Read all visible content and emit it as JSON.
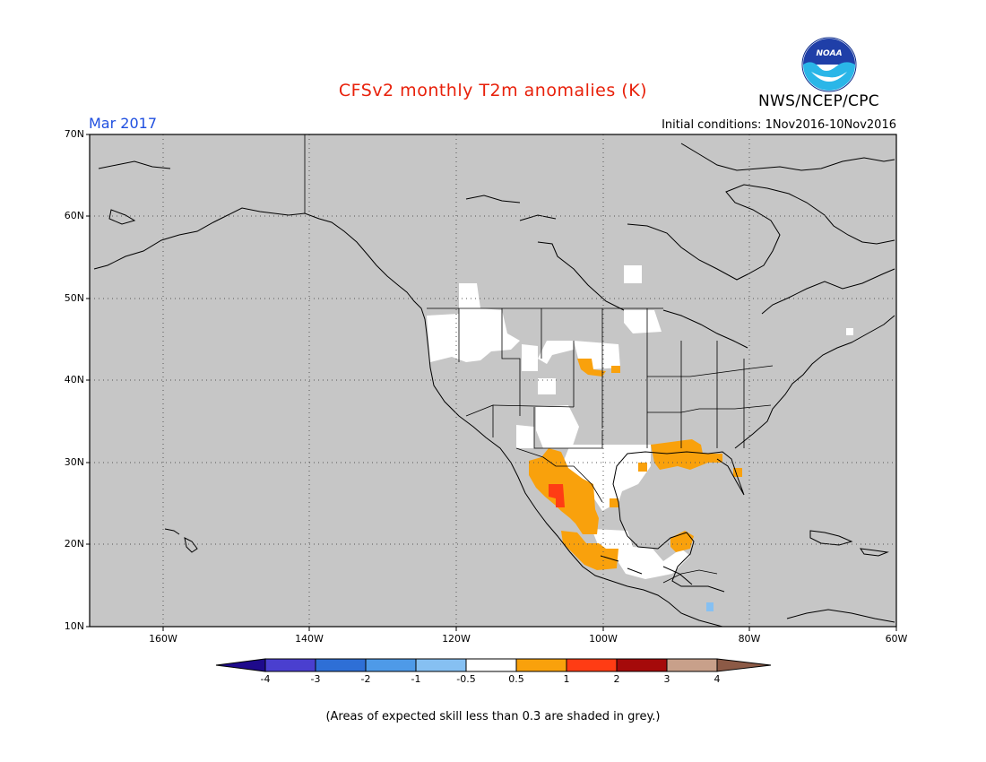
{
  "title": "CFSv2 monthly T2m anomalies (K)",
  "organization": "NWS/NCEP/CPC",
  "logo_text": "NOAA",
  "valid_month": "Mar 2017",
  "initial_conditions": "Initial conditions: 1Nov2016-10Nov2016",
  "footnote": "(Areas of expected skill less than 0.3 are shaded in grey.)",
  "colors": {
    "title": "#e8200a",
    "month": "#1f4fe0",
    "map_background": "#c6c6c6",
    "land_outline": "#000000",
    "grid": "#555555"
  },
  "axes": {
    "lat_labels": [
      "70N",
      "60N",
      "50N",
      "40N",
      "30N",
      "20N",
      "10N"
    ],
    "lon_labels": [
      "160W",
      "140W",
      "120W",
      "100W",
      "80W",
      "60W"
    ]
  },
  "colorbar": {
    "ticks": [
      "-4",
      "-3",
      "-2",
      "-1",
      "-0.5",
      "0.5",
      "1",
      "2",
      "3",
      "4"
    ],
    "colors": [
      "#1e0a8c",
      "#4a3fcf",
      "#2e6fd6",
      "#4e9ae8",
      "#86c0f2",
      "#ffffff",
      "#f9a10c",
      "#ff3c14",
      "#a50a0a",
      "#c8a08a",
      "#8c5a46"
    ]
  },
  "anomaly_regions": [
    {
      "name": "Pacific Northwest",
      "category": "near-normal (-0.5 to 0.5)",
      "color": "#ffffff"
    },
    {
      "name": "Northern Rockies",
      "category": "near-normal (-0.5 to 0.5)",
      "color": "#ffffff"
    },
    {
      "name": "Southwest US / New Mexico",
      "category": "near-normal (-0.5 to 0.5)",
      "color": "#ffffff"
    },
    {
      "name": "Texas",
      "category": "near-normal (-0.5 to 0.5)",
      "color": "#ffffff"
    },
    {
      "name": "Northwest Mexico",
      "category": "0.5 to 1",
      "color": "#f9a10c"
    },
    {
      "name": "Central Mexico",
      "category": "1 to 2",
      "color": "#ff3c14"
    },
    {
      "name": "Gulf Coast",
      "category": "0.5 to 1",
      "color": "#f9a10c"
    },
    {
      "name": "Southern Mexico",
      "category": "0.5 to 1",
      "color": "#f9a10c"
    },
    {
      "name": "Yucatan",
      "category": "0.5 to 1",
      "color": "#f9a10c"
    },
    {
      "name": "Nebraska",
      "category": "0.5 to 1",
      "color": "#f9a10c"
    },
    {
      "name": "Honduras",
      "category": "-1 to -0.5",
      "color": "#86c0f2"
    }
  ]
}
